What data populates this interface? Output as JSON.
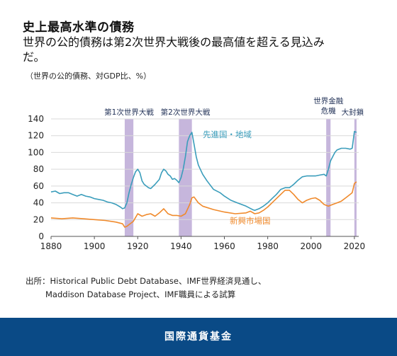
{
  "title": "史上最高水準の債務",
  "subtitle": "世界の公的債務は第2次世界大戦後の最高値を超える見込みだ。",
  "unit_note": "（世界の公的債務、対GDP比、%）",
  "source_line1": "出所：Historical Public Debt Database、IMF世界経済見通し、",
  "source_line2": "Maddison Database Project、IMF職員による試算",
  "footer": "国際通貨基金",
  "colors": {
    "advanced": "#3a9dbb",
    "emerging": "#f08a2c",
    "shade": "#c6b6dc",
    "footer": "#0a4a86"
  },
  "chart_data": {
    "type": "line",
    "xlim": [
      1880,
      2022
    ],
    "ylim": [
      0,
      140
    ],
    "xticks": [
      "1880",
      "1900",
      "1920",
      "1940",
      "1960",
      "1980",
      "2000",
      "2020"
    ],
    "yticks": [
      "0",
      "20",
      "40",
      "60",
      "80",
      "100",
      "120",
      "140"
    ],
    "grid": true,
    "shaded_periods": [
      {
        "label": "第1次世界大戦",
        "start": 1914,
        "end": 1918
      },
      {
        "label": "第2次世界大戦",
        "start": 1939,
        "end": 1945
      },
      {
        "label": "世界金融危機",
        "start": 2007,
        "end": 2009
      },
      {
        "label": "大封鎖",
        "start": 2020,
        "end": 2021
      }
    ],
    "series": [
      {
        "name": "先進国・地域",
        "x": [
          1880,
          1882,
          1884,
          1886,
          1888,
          1890,
          1892,
          1894,
          1896,
          1898,
          1900,
          1902,
          1904,
          1906,
          1908,
          1910,
          1912,
          1913,
          1914,
          1915,
          1916,
          1917,
          1918,
          1919,
          1920,
          1921,
          1922,
          1923,
          1924,
          1925,
          1926,
          1928,
          1930,
          1931,
          1932,
          1933,
          1934,
          1935,
          1936,
          1937,
          1938,
          1939,
          1940,
          1941,
          1942,
          1943,
          1944,
          1945,
          1946,
          1947,
          1948,
          1950,
          1952,
          1955,
          1958,
          1960,
          1963,
          1966,
          1970,
          1973,
          1974,
          1976,
          1978,
          1980,
          1982,
          1984,
          1986,
          1988,
          1990,
          1992,
          1994,
          1996,
          1998,
          2000,
          2002,
          2004,
          2006,
          2007,
          2008,
          2009,
          2010,
          2011,
          2012,
          2014,
          2016,
          2018,
          2019,
          2020,
          2021
        ],
        "values": [
          53,
          54,
          51,
          52,
          52,
          50,
          48,
          50,
          48,
          47,
          45,
          44,
          43,
          41,
          40,
          38,
          35,
          33,
          34,
          40,
          52,
          62,
          70,
          77,
          80,
          76,
          66,
          62,
          60,
          58,
          57,
          62,
          68,
          76,
          80,
          78,
          74,
          72,
          68,
          69,
          67,
          64,
          70,
          80,
          95,
          113,
          120,
          124,
          110,
          95,
          85,
          74,
          66,
          56,
          52,
          48,
          43,
          40,
          36,
          32,
          31,
          33,
          36,
          40,
          45,
          50,
          56,
          58,
          58,
          62,
          67,
          71,
          72,
          72,
          72,
          73,
          74,
          72,
          80,
          90,
          95,
          100,
          103,
          105,
          105,
          104,
          105,
          125,
          124
        ]
      },
      {
        "name": "新興市場国",
        "x": [
          1880,
          1885,
          1890,
          1895,
          1900,
          1905,
          1910,
          1913,
          1914,
          1915,
          1916,
          1918,
          1920,
          1922,
          1924,
          1926,
          1928,
          1930,
          1932,
          1934,
          1936,
          1938,
          1940,
          1942,
          1944,
          1945,
          1946,
          1948,
          1950,
          1955,
          1960,
          1965,
          1970,
          1972,
          1974,
          1976,
          1978,
          1980,
          1982,
          1984,
          1986,
          1988,
          1990,
          1992,
          1994,
          1996,
          1998,
          2000,
          2002,
          2004,
          2006,
          2007,
          2008,
          2010,
          2012,
          2014,
          2016,
          2018,
          2019,
          2020,
          2021
        ],
        "values": [
          22,
          21,
          22,
          21,
          20,
          19,
          17,
          15,
          11,
          12,
          14,
          18,
          27,
          24,
          26,
          27,
          24,
          28,
          33,
          27,
          25,
          25,
          24,
          27,
          38,
          46,
          47,
          40,
          36,
          32,
          29,
          27,
          28,
          30,
          27,
          28,
          31,
          35,
          40,
          45,
          50,
          55,
          55,
          50,
          44,
          40,
          43,
          45,
          46,
          43,
          38,
          37,
          36,
          38,
          40,
          42,
          46,
          50,
          52,
          63,
          65
        ]
      }
    ]
  }
}
